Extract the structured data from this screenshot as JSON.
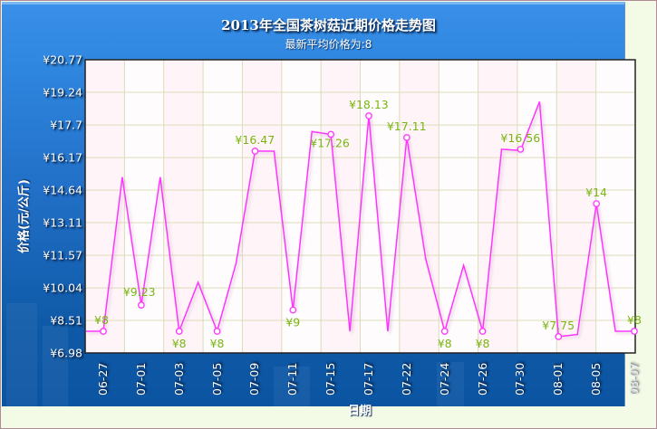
{
  "title": "2013年全国茶树菇近期价格走势图",
  "subtitle": "最新平均价格为:8",
  "y_axis_label": "价格(元/公斤)",
  "x_axis_label": "日期",
  "y_ticks": [
    "¥20.77",
    "¥19.24",
    "¥17.7",
    "¥16.17",
    "¥14.64",
    "¥13.11",
    "¥11.57",
    "¥10.04",
    "¥8.51",
    "¥6.98"
  ],
  "x_ticks": [
    "06-27",
    "07-01",
    "07-03",
    "07-05",
    "07-09",
    "07-11",
    "07-15",
    "07-17",
    "07-22",
    "07-24",
    "07-26",
    "07-30",
    "08-01",
    "08-05",
    "08-07"
  ],
  "colors": {
    "line": "#ff33ff",
    "data_label": "#7ab512",
    "panel": "#2a7ad6",
    "plot_bg": "#fff7fa",
    "grid": "#dcdcb8",
    "outer_bg": "#f3fae6"
  },
  "chart_data": {
    "type": "line",
    "title": "2013年全国茶树菇近期价格走势图",
    "subtitle": "最新平均价格为:8",
    "xlabel": "日期",
    "ylabel": "价格(元/公斤)",
    "ylim": [
      6.98,
      20.77
    ],
    "y_ticks": [
      6.98,
      8.51,
      10.04,
      11.57,
      13.11,
      14.64,
      16.17,
      17.7,
      19.24,
      20.77
    ],
    "grid": true,
    "legend": null,
    "x_tick_labels": [
      "06-27",
      "07-01",
      "07-03",
      "07-05",
      "07-09",
      "07-11",
      "07-15",
      "07-17",
      "07-22",
      "07-24",
      "07-26",
      "07-30",
      "08-01",
      "08-05",
      "08-07"
    ],
    "series": [
      {
        "name": "价格",
        "values": [
          8,
          8,
          15.25,
          9.23,
          15.25,
          8,
          10.3,
          8,
          11.2,
          16.47,
          16.47,
          9,
          17.39,
          17.26,
          8,
          18.13,
          8,
          17.11,
          11.4,
          8,
          11.1,
          8,
          16.56,
          16.5,
          18.8,
          7.75,
          7.85,
          14,
          8,
          8
        ],
        "labeled_points": [
          {
            "date": "06-27",
            "value": 8,
            "label": "¥8"
          },
          {
            "date": "07-01",
            "value": 9.23,
            "label": "¥9.23"
          },
          {
            "date": "07-03",
            "value": 8,
            "label": "¥8"
          },
          {
            "date": "07-05",
            "value": 8,
            "label": "¥8"
          },
          {
            "date": "07-09",
            "value": 16.47,
            "label": "¥16.47"
          },
          {
            "date": "07-11",
            "value": 9,
            "label": "¥9"
          },
          {
            "date": "07-15",
            "value": 17.26,
            "label": "¥17.26"
          },
          {
            "date": "07-17",
            "value": 18.13,
            "label": "¥18.13"
          },
          {
            "date": "07-22",
            "value": 17.11,
            "label": "¥17.11"
          },
          {
            "date": "07-24",
            "value": 8,
            "label": "¥8"
          },
          {
            "date": "07-26",
            "value": 8,
            "label": "¥8"
          },
          {
            "date": "07-30",
            "value": 16.56,
            "label": "¥16.56"
          },
          {
            "date": "08-01",
            "value": 7.75,
            "label": "¥7.75"
          },
          {
            "date": "08-05",
            "value": 14,
            "label": "¥14"
          },
          {
            "date": "08-07",
            "value": 8,
            "label": "¥8"
          }
        ]
      }
    ]
  }
}
